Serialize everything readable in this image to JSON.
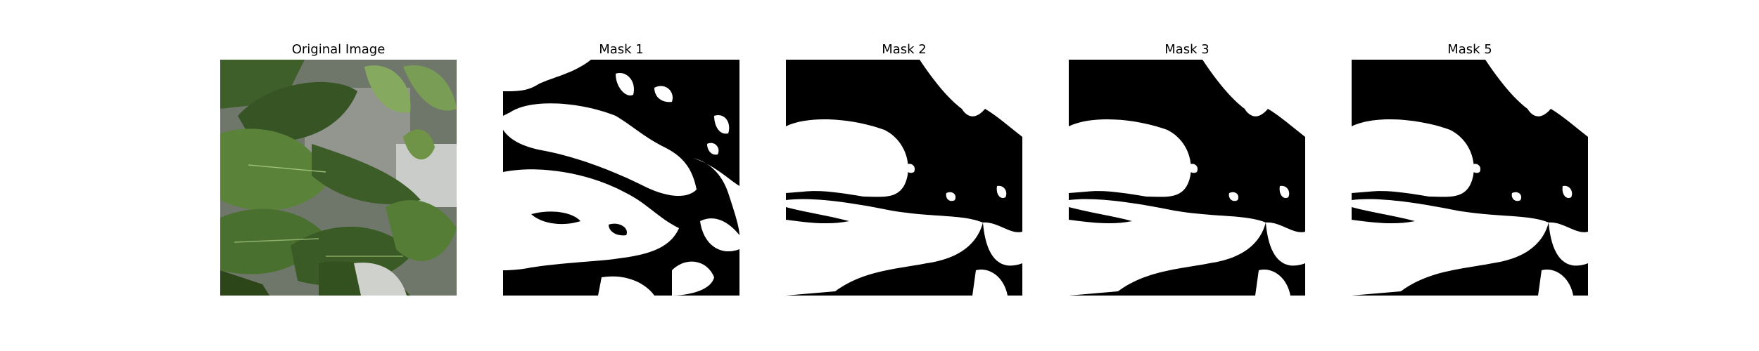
{
  "figure": {
    "panels": [
      {
        "title": "Original Image",
        "kind": "photo"
      },
      {
        "title": "Mask 1",
        "kind": "mask"
      },
      {
        "title": "Mask 2",
        "kind": "mask"
      },
      {
        "title": "Mask 3",
        "kind": "mask"
      },
      {
        "title": "Mask 5",
        "kind": "mask"
      }
    ]
  },
  "colors": {
    "mask_foreground": "#ffffff",
    "mask_background": "#000000",
    "leaf_dark": "#2f4a1f",
    "leaf_mid": "#4f7634",
    "leaf_light": "#7ea35b",
    "background_gray": "#8d8f8a"
  }
}
